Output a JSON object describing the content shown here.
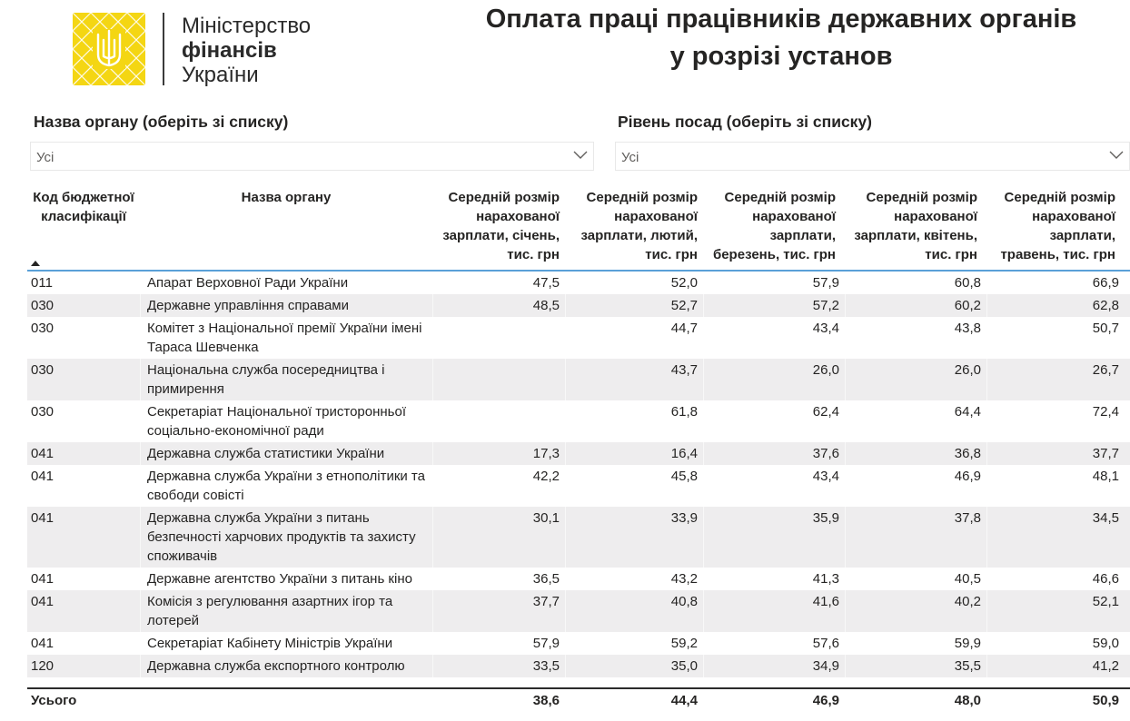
{
  "logo": {
    "line1": "Міністерство",
    "line2": "фінансів",
    "line3": "України"
  },
  "title": {
    "line1": "Оплата праці працівників державних органів",
    "line2": "у розрізі установ"
  },
  "slicers": [
    {
      "label": "Назва органу (оберіть зі списку)",
      "value": "Усі"
    },
    {
      "label": "Рівень посад (оберіть зі списку)",
      "value": "Усі"
    }
  ],
  "table": {
    "headers": {
      "code": "Код бюджетної класифікації",
      "name": "Назва органу",
      "m1": "Середній розмір нарахованої зарплати, січень, тис. грн",
      "m2": "Середній розмір нарахованої зарплати, лютий, тис. грн",
      "m3": "Середній розмір нарахованої зарплати, березень, тис. грн",
      "m4": "Середній розмір нарахованої зарплати, квітень, тис. грн",
      "m5": "Середній розмір нарахованої зарплати, травень, тис. грн"
    },
    "rows": [
      {
        "code": "011",
        "name": "Апарат Верховної Ради України",
        "m1": "47,5",
        "m2": "52,0",
        "m3": "57,9",
        "m4": "60,8",
        "m5": "66,9"
      },
      {
        "code": "030",
        "name": "Державне управління справами",
        "m1": "48,5",
        "m2": "52,7",
        "m3": "57,2",
        "m4": "60,2",
        "m5": "62,8"
      },
      {
        "code": "030",
        "name": "Комітет з Національної премії України імені Тараса Шевченка",
        "m1": "",
        "m2": "44,7",
        "m3": "43,4",
        "m4": "43,8",
        "m5": "50,7"
      },
      {
        "code": "030",
        "name": "Національна служба посередництва і примирення",
        "m1": "",
        "m2": "43,7",
        "m3": "26,0",
        "m4": "26,0",
        "m5": "26,7"
      },
      {
        "code": "030",
        "name": "Секретаріат Національної тристоронньої соціально-економічної ради",
        "m1": "",
        "m2": "61,8",
        "m3": "62,4",
        "m4": "64,4",
        "m5": "72,4"
      },
      {
        "code": "041",
        "name": "Державна служба статистики України",
        "m1": "17,3",
        "m2": "16,4",
        "m3": "37,6",
        "m4": "36,8",
        "m5": "37,7"
      },
      {
        "code": "041",
        "name": "Державна служба України з етнополітики та свободи совісті",
        "m1": "42,2",
        "m2": "45,8",
        "m3": "43,4",
        "m4": "46,9",
        "m5": "48,1"
      },
      {
        "code": "041",
        "name": "Державна служба України з питань безпечності харчових продуктів та захисту споживачів",
        "m1": "30,1",
        "m2": "33,9",
        "m3": "35,9",
        "m4": "37,8",
        "m5": "34,5"
      },
      {
        "code": "041",
        "name": "Державне агентство України з питань кіно",
        "m1": "36,5",
        "m2": "43,2",
        "m3": "41,3",
        "m4": "40,5",
        "m5": "46,6"
      },
      {
        "code": "041",
        "name": "Комісія з регулювання азартних ігор та лотерей",
        "m1": "37,7",
        "m2": "40,8",
        "m3": "41,6",
        "m4": "40,2",
        "m5": "52,1"
      },
      {
        "code": "041",
        "name": "Секретаріат Кабінету Міністрів України",
        "m1": "57,9",
        "m2": "59,2",
        "m3": "57,6",
        "m4": "59,9",
        "m5": "59,0"
      },
      {
        "code": "120",
        "name": "Державна служба експортного контролю",
        "m1": "33,5",
        "m2": "35,0",
        "m3": "34,9",
        "m4": "35,5",
        "m5": "41,2"
      }
    ],
    "total": {
      "label": "Усього",
      "m1": "38,6",
      "m2": "44,4",
      "m3": "46,9",
      "m4": "48,0",
      "m5": "50,9"
    }
  }
}
